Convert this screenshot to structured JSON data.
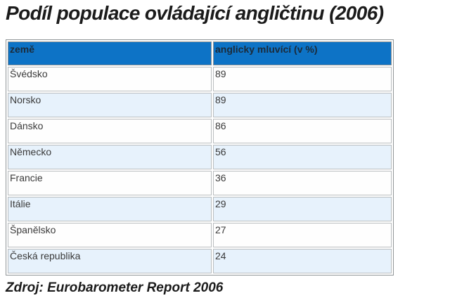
{
  "title": "Podíl populace ovládající angličtinu (2006)",
  "source": "Zdroj: Eurobarometer Report 2006",
  "table": {
    "headers": [
      "země",
      "anglicky mluvící (v %)"
    ],
    "rows": [
      [
        "Švédsko",
        "89"
      ],
      [
        "Norsko",
        "89"
      ],
      [
        "Dánsko",
        "86"
      ],
      [
        "Německo",
        "56"
      ],
      [
        "Francie",
        "36"
      ],
      [
        "Itálie",
        "29"
      ],
      [
        "Španělsko",
        "27"
      ],
      [
        "Česká republika",
        "24"
      ]
    ]
  },
  "colors": {
    "header_bg": "#0d73c6",
    "header_text": "#1c2b3a",
    "row_bg": "#fefefe",
    "row_alt_bg": "#e7f2fc",
    "outer_border": "#8f9496",
    "cell_border": "#b9bdbf",
    "body_text": "#3a3a3a",
    "title_text": "#1b1b1b"
  },
  "chart_data": {
    "type": "table",
    "title": "Podíl populace ovládající angličtinu (2006)",
    "columns": [
      "země",
      "anglicky mluvící (v %)"
    ],
    "categories": [
      "Švédsko",
      "Norsko",
      "Dánsko",
      "Německo",
      "Francie",
      "Itálie",
      "Španělsko",
      "Česká republika"
    ],
    "values": [
      89,
      89,
      86,
      56,
      36,
      29,
      27,
      24
    ],
    "source": "Zdroj: Eurobarometer Report 2006",
    "legend_position": "none",
    "grid": false
  }
}
